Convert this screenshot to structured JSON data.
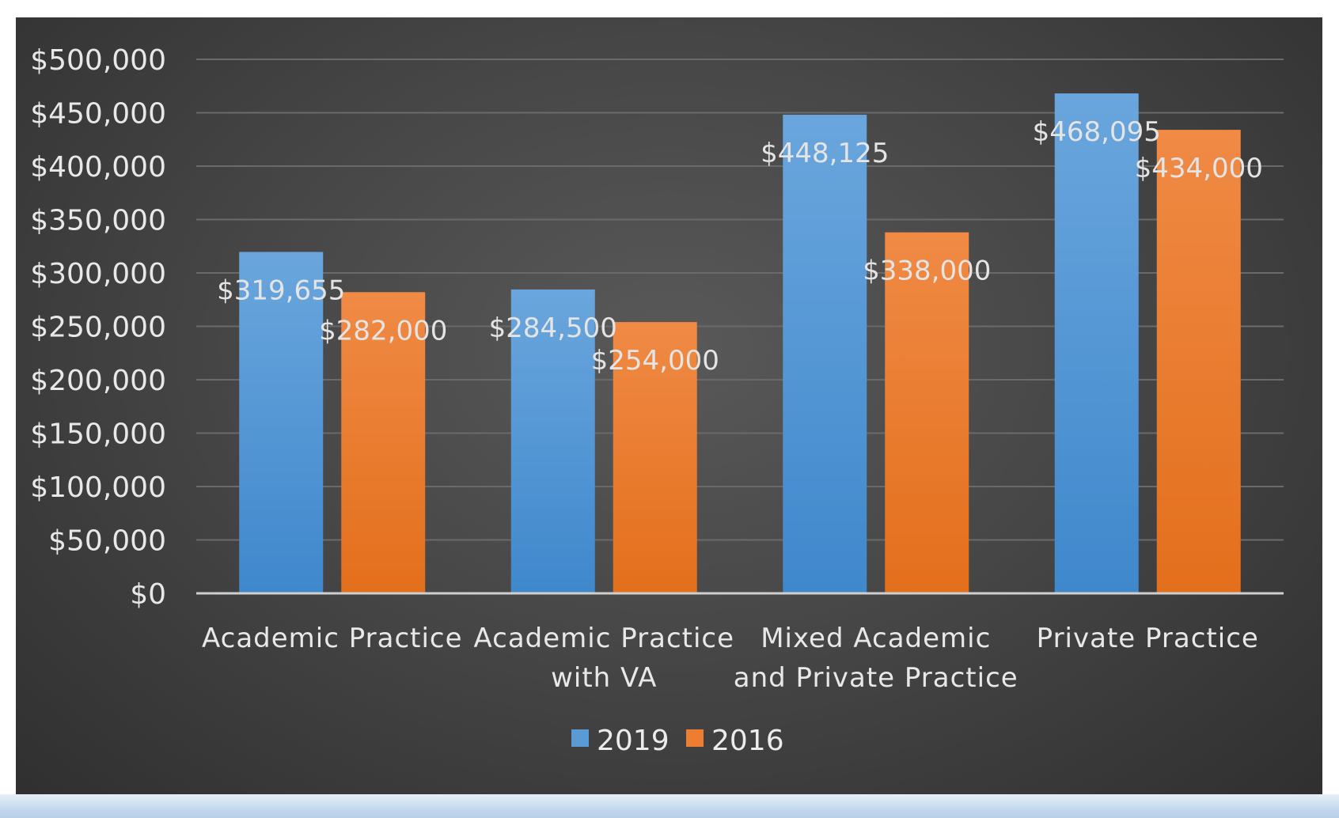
{
  "chart_data": {
    "type": "bar",
    "categories": [
      [
        "Academic Practice"
      ],
      [
        "Academic Practice",
        "with VA"
      ],
      [
        "Mixed Academic",
        "and Private Practice"
      ],
      [
        "Private Practice"
      ]
    ],
    "series": [
      {
        "name": "2019",
        "color": "#5b9bd5",
        "values": [
          319655,
          284500,
          448125,
          468095
        ],
        "labels": [
          "$319,655",
          "$284,500",
          "$448,125",
          "$468,095"
        ]
      },
      {
        "name": "2016",
        "color": "#ed7d31",
        "values": [
          282000,
          254000,
          338000,
          434000
        ],
        "labels": [
          "$282,000",
          "$254,000",
          "$338,000",
          "$434,000"
        ]
      }
    ],
    "ylim": [
      0,
      500000
    ],
    "ytick_labels": [
      "$0",
      "$50,000",
      "$100,000",
      "$150,000",
      "$200,000",
      "$250,000",
      "$300,000",
      "$350,000",
      "$400,000",
      "$450,000",
      "$500,000"
    ],
    "grid": true,
    "legend_position": "bottom",
    "title": "",
    "xlabel": "",
    "ylabel": ""
  }
}
